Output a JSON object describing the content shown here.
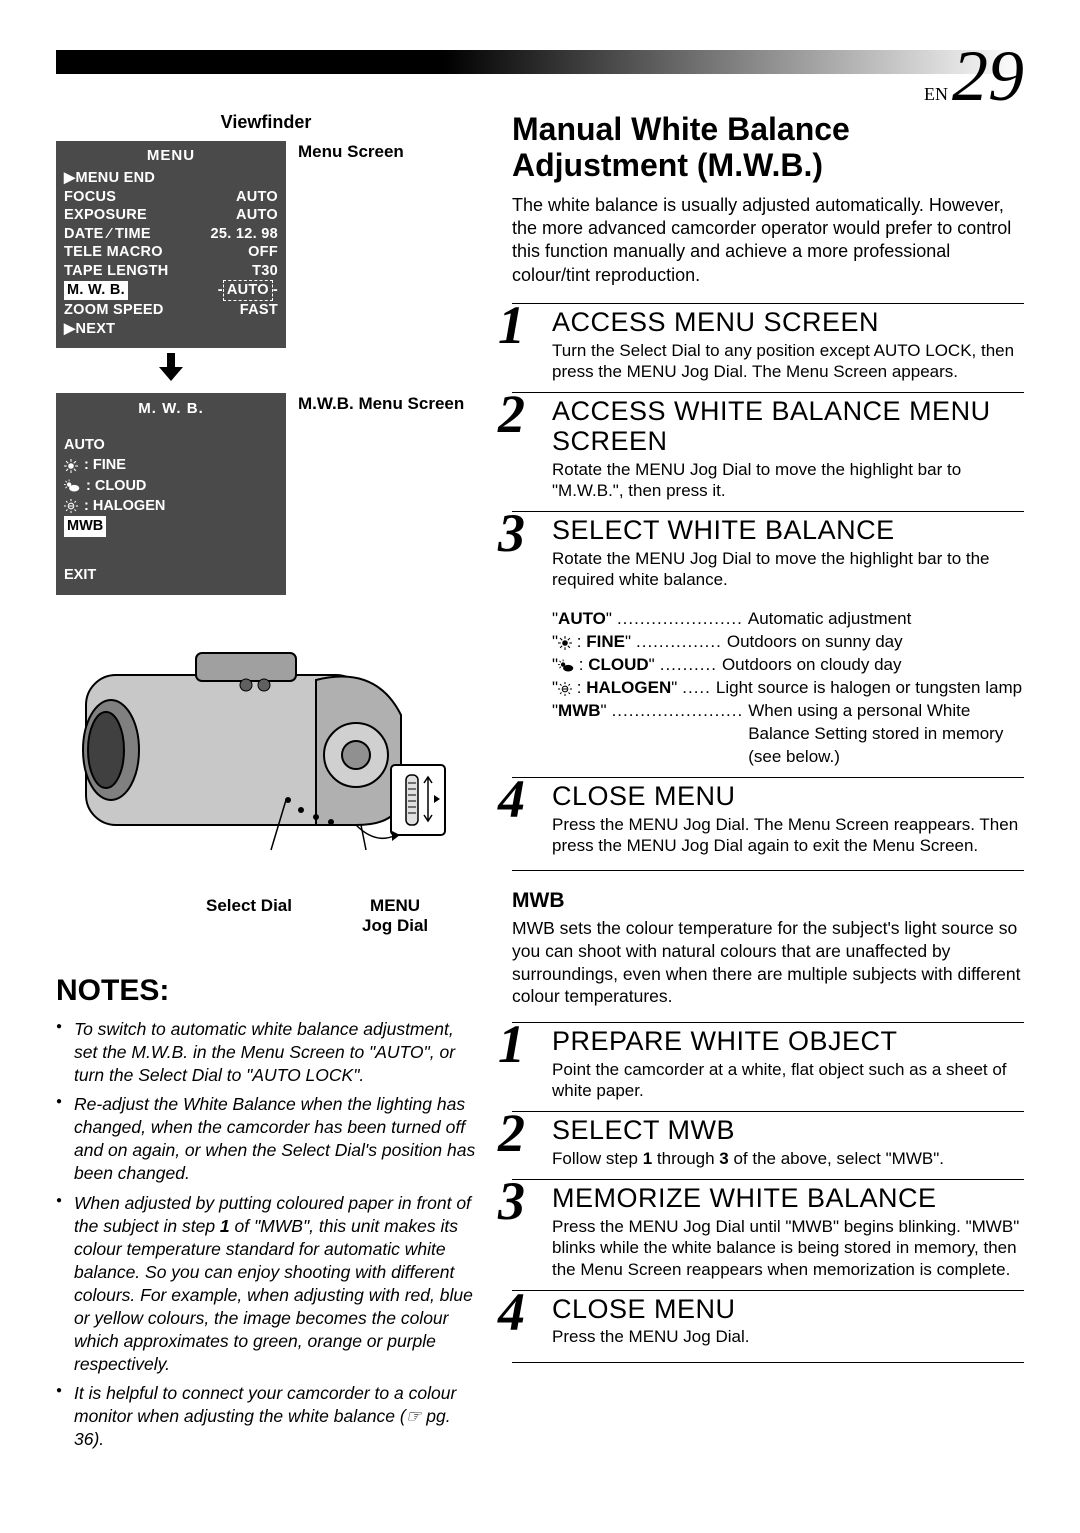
{
  "page_label_prefix": "EN",
  "page_number": "29",
  "viewfinder_title": "Viewfinder",
  "menu_screen_label": "Menu Screen",
  "mwb_menu_label": "M.W.B. Menu Screen",
  "menu1": {
    "title": "MENU",
    "rows": [
      {
        "l": "▶MENU  END",
        "r": ""
      },
      {
        "l": "FOCUS",
        "r": "AUTO"
      },
      {
        "l": "EXPOSURE",
        "r": "AUTO"
      },
      {
        "l": "DATE ⁄ TIME",
        "r": "25. 12. 98"
      },
      {
        "l": "TELE   MACRO",
        "r": "OFF"
      },
      {
        "l": "TAPE  LENGTH",
        "r": "T30"
      },
      {
        "l_hl": "M. W. B.",
        "r_dashed": "AUTO"
      },
      {
        "l": "ZOOM SPEED",
        "r": "FAST"
      },
      {
        "l": "▶NEXT",
        "r": ""
      }
    ]
  },
  "menu2": {
    "title": "M. W. B.",
    "auto_label": "AUTO",
    "options": [
      {
        "icon": "sun",
        "label": "FINE"
      },
      {
        "icon": "sun-cloud",
        "label": "CLOUD"
      },
      {
        "icon": "lamp",
        "label": "HALOGEN"
      }
    ],
    "mwb_hl": "MWB",
    "exit": "EXIT"
  },
  "select_dial_label": "Select Dial",
  "jog_dial_label": "MENU Jog Dial",
  "notes_title": "NOTES:",
  "notes": [
    "To switch to automatic white balance adjustment, set the M.W.B. in the Menu Screen to \"AUTO\", or turn the Select Dial to \"AUTO LOCK\".",
    "Re-adjust the White Balance when the lighting has changed, when the camcorder has been turned off and on again, or when the Select Dial's position has been changed.",
    "When adjusted by putting coloured paper in front of the subject in step 1 of \"MWB\", this unit makes its colour temperature standard for automatic white balance. So you can enjoy shooting with different colours. For example, when adjusting with red, blue or yellow colours, the image becomes the colour which approximates to green, orange or purple respectively.",
    "It is helpful to connect your camcorder to a colour monitor when adjusting the white balance (☞ pg. 36)."
  ],
  "main_title": "Manual White Balance Adjustment (M.W.B.)",
  "intro": "The white balance is usually adjusted automatically. However, the more advanced camcorder operator would prefer to control this function manually and achieve a more professional colour/tint reproduction.",
  "steps1": [
    {
      "n": "1",
      "t": "ACCESS MENU SCREEN",
      "b": "Turn the Select Dial to any position except AUTO LOCK, then press the MENU Jog Dial. The Menu Screen appears."
    },
    {
      "n": "2",
      "t": "ACCESS WHITE BALANCE MENU SCREEN",
      "b": "Rotate the MENU Jog Dial to move the highlight bar to \"M.W.B.\", then press it."
    },
    {
      "n": "3",
      "t": "SELECT WHITE BALANCE",
      "b": "Rotate the MENU Jog Dial to move the highlight bar to the required white balance."
    }
  ],
  "wb_options": [
    {
      "q": "\"",
      "label": "AUTO",
      "q2": "\"",
      "dots": "......................",
      "desc": "Automatic adjustment"
    },
    {
      "q": "\"",
      "icon": "sun",
      "label": " : FINE",
      "q2": "\"",
      "dots": "...............",
      "desc": "Outdoors on sunny day"
    },
    {
      "q": "\"",
      "icon": "sun-cloud",
      "label": " : CLOUD",
      "q2": "\"",
      "dots": "..........",
      "desc": "Outdoors on cloudy day"
    },
    {
      "q": "\"",
      "icon": "lamp",
      "label": " : HALOGEN",
      "q2": "\"",
      "dots": ".....",
      "desc": "Light source is halogen or tungsten lamp"
    },
    {
      "q": "\"",
      "label": "MWB",
      "q2": "\"",
      "dots": ".......................",
      "desc": "When using a personal White Balance Setting stored in memory (see below.)"
    }
  ],
  "step4": {
    "n": "4",
    "t": "CLOSE MENU",
    "b": "Press the MENU Jog Dial. The Menu Screen reappears. Then press the MENU Jog Dial again to exit the Menu Screen."
  },
  "mwb_title": "MWB",
  "mwb_intro": "MWB sets the colour temperature for the subject's light source so you can shoot with natural colours that are unaffected by surroundings, even when there are multiple subjects with different colour temperatures.",
  "steps2": [
    {
      "n": "1",
      "t": "PREPARE WHITE OBJECT",
      "b": "Point the camcorder at a white, flat object such as a sheet of white paper."
    },
    {
      "n": "2",
      "t": "SELECT MWB",
      "b": "Follow step 1 through 3 of the above, select \"MWB\"."
    },
    {
      "n": "3",
      "t": "MEMORIZE WHITE BALANCE",
      "b": "Press the MENU Jog Dial until \"MWB\" begins blinking. \"MWB\" blinks while the white balance is being stored in memory, then the Menu Screen reappears when memorization is complete."
    },
    {
      "n": "4",
      "t": "CLOSE MENU",
      "b": "Press the MENU Jog Dial."
    }
  ],
  "colors": {
    "menu_bg": "#4a4a4a",
    "text": "#000000",
    "step_num": "#000000"
  }
}
